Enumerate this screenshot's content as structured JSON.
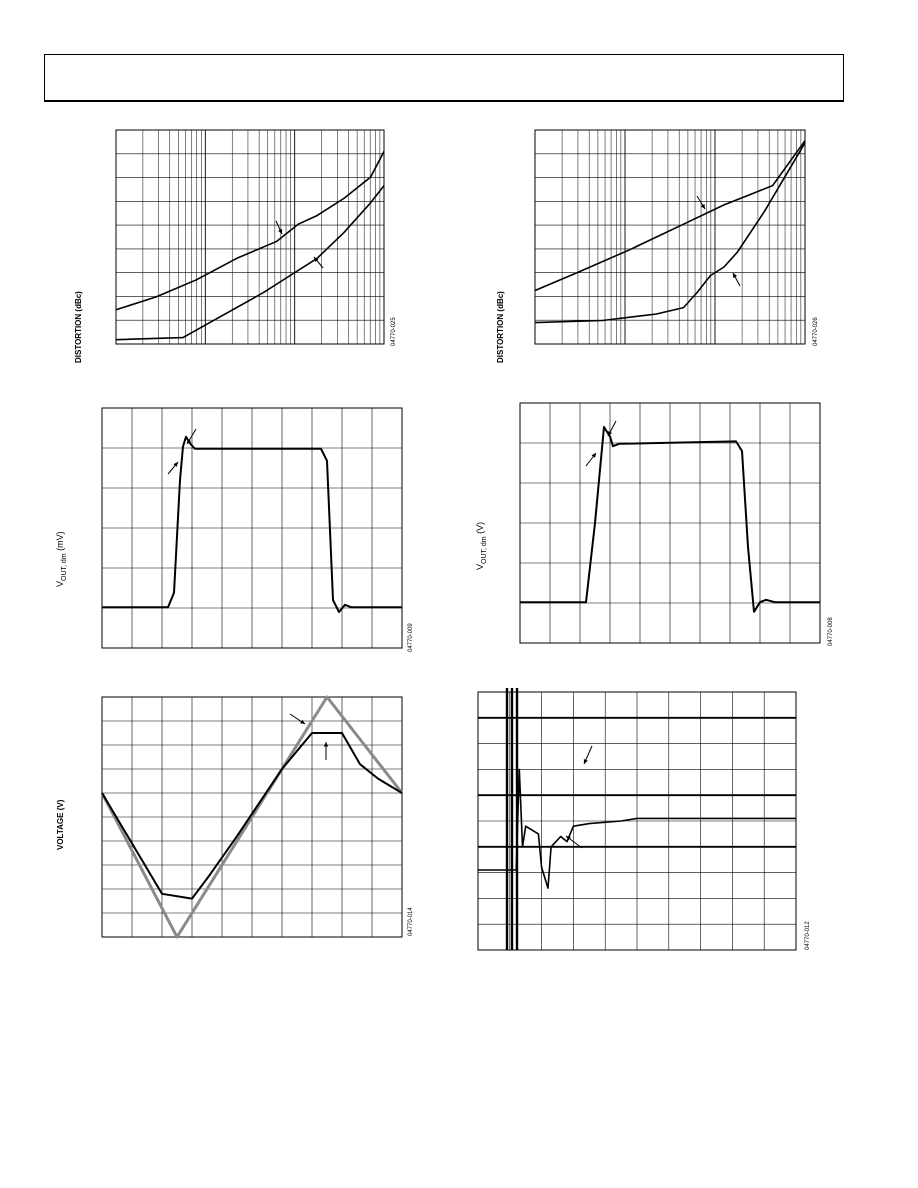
{
  "page": {
    "header": ""
  },
  "charts": [
    {
      "id": "dist1",
      "ylabel": "DISTORTION (dBc)",
      "fig_id": "04770-025",
      "grid": "log-x",
      "colors": {
        "line": "#000000"
      }
    },
    {
      "id": "dist2",
      "ylabel": "DISTORTION (dBc)",
      "fig_id": "04770-026",
      "grid": "log-x",
      "colors": {
        "line": "#000000"
      }
    },
    {
      "id": "pulse1",
      "ylabel_main": "V",
      "ylabel_sub": "OUT, dm",
      "ylabel_unit": " (mV)",
      "fig_id": "04770-009",
      "grid": "linear",
      "colors": {
        "line": "#000000"
      }
    },
    {
      "id": "pulse2",
      "ylabel_main": "V",
      "ylabel_sub": "OUT, dm",
      "ylabel_unit": " (V)",
      "fig_id": "04770-008",
      "grid": "linear",
      "colors": {
        "line": "#000000"
      }
    },
    {
      "id": "clip",
      "ylabel": "VOLTAGE (V)",
      "fig_id": "04770-014",
      "grid": "linear",
      "colors": {
        "input": "#8a8a8a",
        "output": "#000000"
      }
    },
    {
      "id": "settle",
      "ylabel": "",
      "fig_id": "04770-012",
      "grid": "linear",
      "colors": {
        "line": "#000000"
      }
    }
  ],
  "chart_data": [
    {
      "type": "line",
      "xscale": "log",
      "series": [
        {
          "values_norm": [
            [
              0,
              0.84
            ],
            [
              0.15,
              0.78
            ],
            [
              0.3,
              0.7
            ],
            [
              0.45,
              0.6
            ],
            [
              0.6,
              0.52
            ],
            [
              0.68,
              0.44
            ],
            [
              0.75,
              0.4
            ],
            [
              0.85,
              0.32
            ],
            [
              0.95,
              0.22
            ],
            [
              1,
              0.1
            ]
          ]
        },
        {
          "values_norm": [
            [
              0,
              0.98
            ],
            [
              0.25,
              0.97
            ],
            [
              0.35,
              0.9
            ],
            [
              0.55,
              0.76
            ],
            [
              0.65,
              0.68
            ],
            [
              0.75,
              0.6
            ],
            [
              0.85,
              0.48
            ],
            [
              0.95,
              0.34
            ],
            [
              1,
              0.26
            ]
          ]
        }
      ]
    },
    {
      "type": "line",
      "xscale": "log",
      "series": [
        {
          "values_norm": [
            [
              0,
              0.75
            ],
            [
              0.15,
              0.67
            ],
            [
              0.35,
              0.56
            ],
            [
              0.55,
              0.44
            ],
            [
              0.7,
              0.35
            ],
            [
              0.8,
              0.3
            ],
            [
              0.88,
              0.26
            ],
            [
              1,
              0.05
            ]
          ]
        },
        {
          "values_norm": [
            [
              0,
              0.9
            ],
            [
              0.25,
              0.89
            ],
            [
              0.45,
              0.86
            ],
            [
              0.55,
              0.83
            ],
            [
              0.6,
              0.76
            ],
            [
              0.65,
              0.68
            ],
            [
              0.7,
              0.64
            ],
            [
              0.75,
              0.57
            ],
            [
              0.85,
              0.38
            ],
            [
              1,
              0.06
            ]
          ]
        }
      ]
    },
    {
      "type": "line",
      "series": [
        {
          "values_norm": [
            [
              0,
              0.83
            ],
            [
              0.22,
              0.83
            ],
            [
              0.24,
              0.77
            ],
            [
              0.26,
              0.3
            ],
            [
              0.27,
              0.16
            ],
            [
              0.28,
              0.12
            ],
            [
              0.295,
              0.15
            ],
            [
              0.31,
              0.17
            ],
            [
              0.33,
              0.17
            ],
            [
              0.73,
              0.17
            ],
            [
              0.75,
              0.22
            ],
            [
              0.77,
              0.8
            ],
            [
              0.79,
              0.85
            ],
            [
              0.81,
              0.82
            ],
            [
              0.83,
              0.83
            ],
            [
              1,
              0.83
            ]
          ]
        }
      ]
    },
    {
      "type": "line",
      "series": [
        {
          "values_norm": [
            [
              0,
              0.83
            ],
            [
              0.22,
              0.83
            ],
            [
              0.25,
              0.5
            ],
            [
              0.28,
              0.1
            ],
            [
              0.3,
              0.14
            ],
            [
              0.31,
              0.18
            ],
            [
              0.33,
              0.17
            ],
            [
              0.72,
              0.16
            ],
            [
              0.74,
              0.2
            ],
            [
              0.76,
              0.6
            ],
            [
              0.78,
              0.87
            ],
            [
              0.8,
              0.83
            ],
            [
              0.82,
              0.82
            ],
            [
              0.85,
              0.83
            ],
            [
              1,
              0.83
            ]
          ]
        }
      ]
    },
    {
      "type": "line",
      "series": [
        {
          "name": "",
          "values_norm": [
            [
              0,
              0.4
            ],
            [
              0.25,
              1
            ],
            [
              0.75,
              0
            ],
            [
              1,
              0.4
            ]
          ]
        },
        {
          "name": "",
          "values_norm": [
            [
              0,
              0.4
            ],
            [
              0.2,
              0.82
            ],
            [
              0.3,
              0.84
            ],
            [
              0.36,
              0.74
            ],
            [
              0.45,
              0.58
            ],
            [
              0.6,
              0.3
            ],
            [
              0.7,
              0.15
            ],
            [
              0.8,
              0.15
            ],
            [
              0.86,
              0.28
            ],
            [
              0.92,
              0.34
            ],
            [
              1,
              0.4
            ]
          ]
        }
      ]
    },
    {
      "type": "line",
      "series": [
        {
          "values_norm": [
            [
              0,
              0.69
            ],
            [
              0.12,
              0.69
            ],
            [
              0.13,
              0.3
            ],
            [
              0.14,
              0.6
            ],
            [
              0.15,
              0.52
            ],
            [
              0.19,
              0.55
            ],
            [
              0.2,
              0.68
            ],
            [
              0.22,
              0.76
            ],
            [
              0.23,
              0.6
            ],
            [
              0.26,
              0.56
            ],
            [
              0.28,
              0.58
            ],
            [
              0.3,
              0.52
            ],
            [
              0.35,
              0.51
            ],
            [
              0.45,
              0.5
            ],
            [
              0.5,
              0.49
            ],
            [
              0.7,
              0.49
            ],
            [
              0.9,
              0.49
            ],
            [
              1,
              0.49
            ]
          ]
        }
      ]
    }
  ]
}
